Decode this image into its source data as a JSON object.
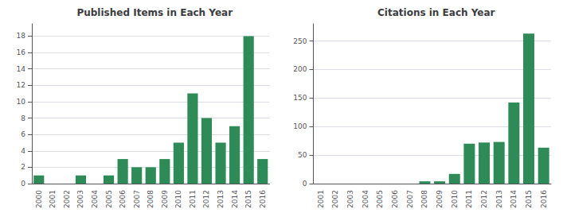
{
  "chart_data": [
    {
      "type": "bar",
      "title": "Published Items in Each Year",
      "categories": [
        "2000",
        "2001",
        "2002",
        "2003",
        "2004",
        "2005",
        "2006",
        "2007",
        "2008",
        "2009",
        "2010",
        "2011",
        "2012",
        "2013",
        "2014",
        "2015",
        "2016"
      ],
      "values": [
        1,
        0,
        0,
        1,
        0,
        1,
        3,
        2,
        2,
        3,
        5,
        11,
        8,
        5,
        7,
        18,
        3
      ],
      "color": "#2e8b57",
      "ylim": [
        0,
        19.5
      ],
      "yticks": [
        0,
        2,
        4,
        6,
        8,
        10,
        12,
        14,
        16,
        18
      ],
      "grid": true
    },
    {
      "type": "bar",
      "title": "Citations in Each Year",
      "categories": [
        "2001",
        "2002",
        "2003",
        "2004",
        "2005",
        "2006",
        "2007",
        "2008",
        "2009",
        "2010",
        "2011",
        "2012",
        "2013",
        "2014",
        "2015",
        "2016"
      ],
      "values": [
        0,
        0,
        0,
        0,
        0,
        0,
        0,
        4,
        4,
        17,
        70,
        72,
        73,
        142,
        263,
        63
      ],
      "color": "#2e8b57",
      "ylim": [
        0,
        280
      ],
      "yticks": [
        0,
        50,
        100,
        150,
        200,
        250
      ],
      "grid": true
    }
  ]
}
